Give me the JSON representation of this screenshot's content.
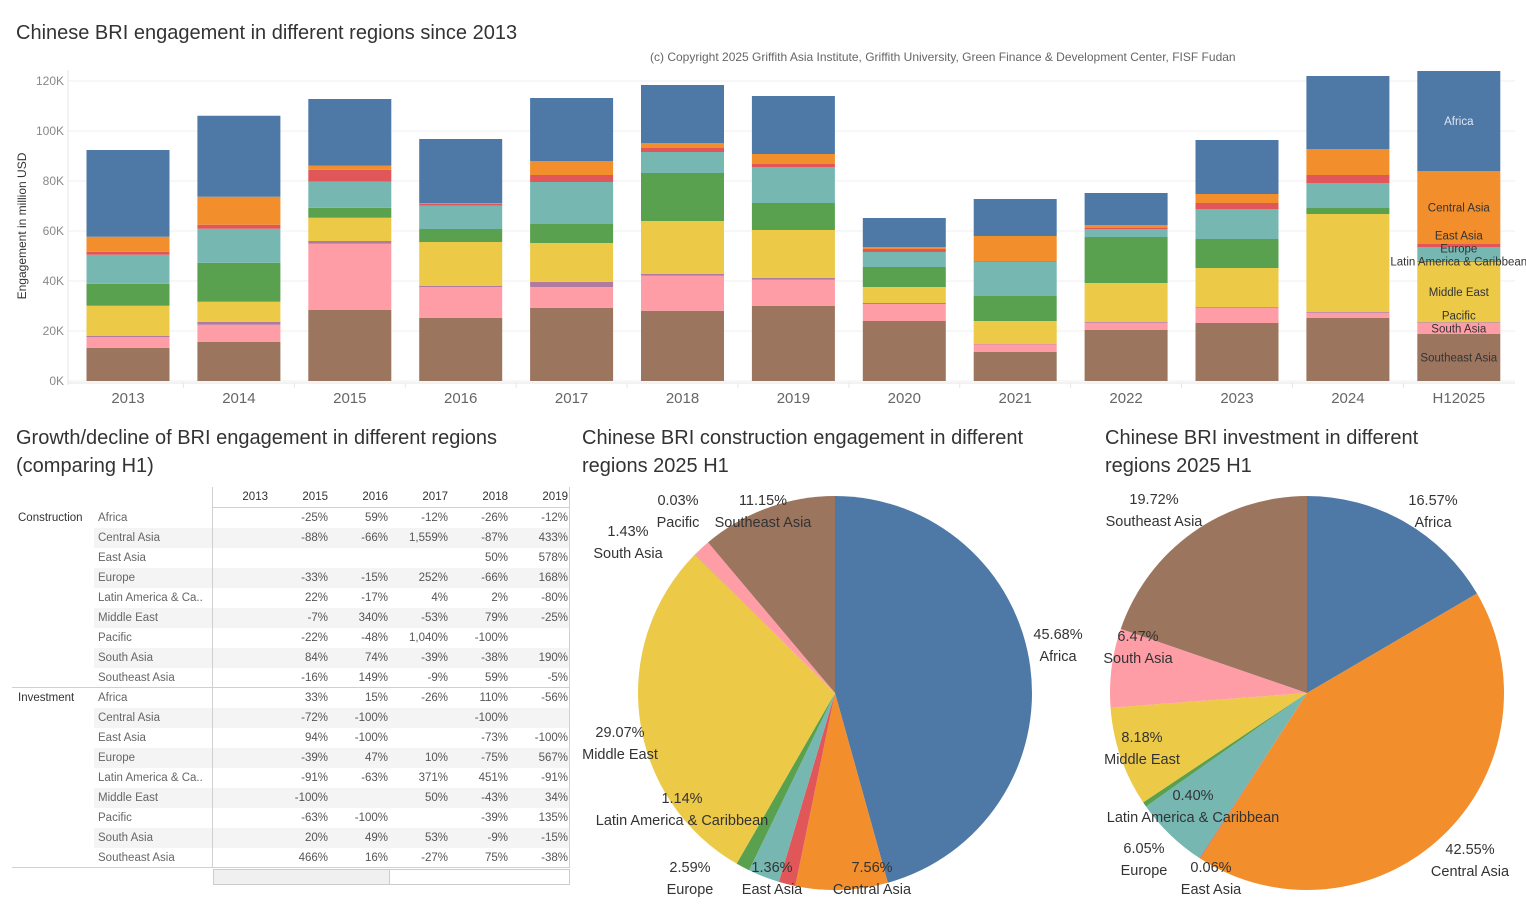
{
  "titles": {
    "bar": "Chinese BRI engagement in different regions since 2013",
    "table": "Growth/decline of BRI engagement in different regions\n(comparing H1)",
    "construction_pie": "Chinese BRI construction engagement in different\nregions 2025 H1",
    "investment_pie": "Chinese BRI investment in different\nregions 2025 H1"
  },
  "copyright": "(c) Copyright 2025 Griffith Asia Institute, Griffith University, Green Finance & Development Center, FISF Fudan",
  "colors": {
    "Africa": "#4e79a7",
    "Central Asia": "#f28e2b",
    "East Asia": "#e15759",
    "Europe": "#76b7b2",
    "Latin America & Caribbean": "#59a14f",
    "Middle East": "#edc948",
    "Pacific": "#b07aa1",
    "South Asia": "#ff9da7",
    "Southeast Asia": "#9c755f"
  },
  "chart_data": [
    {
      "type": "bar",
      "stacked": true,
      "title": "Chinese BRI engagement in different regions since 2013",
      "ylabel": "Engagement in million USD",
      "xlabel": "",
      "ylim": [
        0,
        125000
      ],
      "yticks": [
        "0K",
        "20K",
        "40K",
        "60K",
        "80K",
        "100K",
        "120K"
      ],
      "ytick_values": [
        0,
        20000,
        40000,
        60000,
        80000,
        100000,
        120000
      ],
      "grid": true,
      "categories": [
        "2013",
        "2014",
        "2015",
        "2016",
        "2017",
        "2018",
        "2019",
        "2020",
        "2021",
        "2022",
        "2023",
        "2024",
        "H12025"
      ],
      "series": [
        {
          "name": "Southeast Asia",
          "values": [
            13300,
            15700,
            28500,
            25300,
            29300,
            28100,
            30100,
            24000,
            11600,
            20400,
            23200,
            25300,
            18800
          ]
        },
        {
          "name": "South Asia",
          "values": [
            4300,
            6800,
            26400,
            12300,
            8300,
            14000,
            10400,
            6800,
            3200,
            2900,
            6100,
            2000,
            4400
          ]
        },
        {
          "name": "Pacific",
          "values": [
            500,
            1200,
            1100,
            500,
            2100,
            800,
            800,
            400,
            100,
            300,
            300,
            300,
            300
          ]
        },
        {
          "name": "Middle East",
          "values": [
            12000,
            8000,
            9300,
            17500,
            15500,
            21100,
            19100,
            6400,
            9100,
            15600,
            15600,
            39200,
            24100
          ]
        },
        {
          "name": "Latin America & Caribbean",
          "values": [
            8800,
            15600,
            4000,
            5200,
            7600,
            19200,
            10800,
            8000,
            10000,
            18400,
            11600,
            2400,
            500
          ]
        },
        {
          "name": "Europe",
          "values": [
            11600,
            13600,
            10400,
            9300,
            16800,
            8400,
            14400,
            6000,
            13700,
            3200,
            12000,
            10000,
            5500
          ]
        },
        {
          "name": "East Asia",
          "values": [
            1200,
            1600,
            4800,
            700,
            2800,
            1600,
            1200,
            1200,
            300,
            400,
            2400,
            3200,
            1200
          ]
        },
        {
          "name": "Central Asia",
          "values": [
            6000,
            11200,
            1600,
            400,
            5600,
            2000,
            4000,
            800,
            10000,
            1200,
            3600,
            10400,
            29200
          ]
        },
        {
          "name": "Africa",
          "values": [
            34700,
            32400,
            26700,
            25600,
            25200,
            23200,
            23200,
            11600,
            14800,
            12800,
            21600,
            29200,
            40000
          ]
        }
      ],
      "segment_labels_on": "H12025"
    },
    {
      "type": "table",
      "title": "Growth/decline of BRI engagement in different regions (comparing H1)",
      "columns": [
        "2013",
        "2015",
        "2016",
        "2017",
        "2018",
        "2019"
      ],
      "groups": [
        {
          "name": "Construction",
          "rows": [
            {
              "region": "Africa",
              "values": [
                "",
                "-25%",
                "59%",
                "-12%",
                "-26%",
                "-12%"
              ]
            },
            {
              "region": "Central Asia",
              "values": [
                "",
                "-88%",
                "-66%",
                "1,559%",
                "-87%",
                "433%"
              ]
            },
            {
              "region": "East Asia",
              "values": [
                "",
                "",
                "",
                "",
                "50%",
                "578%"
              ]
            },
            {
              "region": "Europe",
              "values": [
                "",
                "-33%",
                "-15%",
                "252%",
                "-66%",
                "168%"
              ]
            },
            {
              "region": "Latin America & Ca..",
              "values": [
                "",
                "22%",
                "-17%",
                "4%",
                "2%",
                "-80%"
              ]
            },
            {
              "region": "Middle East",
              "values": [
                "",
                "-7%",
                "340%",
                "-53%",
                "79%",
                "-25%"
              ]
            },
            {
              "region": "Pacific",
              "values": [
                "",
                "-22%",
                "-48%",
                "1,040%",
                "-100%",
                ""
              ]
            },
            {
              "region": "South Asia",
              "values": [
                "",
                "84%",
                "74%",
                "-39%",
                "-38%",
                "190%"
              ]
            },
            {
              "region": "Southeast Asia",
              "values": [
                "",
                "-16%",
                "149%",
                "-9%",
                "59%",
                "-5%"
              ]
            }
          ]
        },
        {
          "name": "Investment",
          "rows": [
            {
              "region": "Africa",
              "values": [
                "",
                "33%",
                "15%",
                "-26%",
                "110%",
                "-56%"
              ]
            },
            {
              "region": "Central Asia",
              "values": [
                "",
                "-72%",
                "-100%",
                "",
                "-100%",
                ""
              ]
            },
            {
              "region": "East Asia",
              "values": [
                "",
                "94%",
                "-100%",
                "",
                "-73%",
                "-100%"
              ]
            },
            {
              "region": "Europe",
              "values": [
                "",
                "-39%",
                "47%",
                "10%",
                "-75%",
                "567%"
              ]
            },
            {
              "region": "Latin America & Ca..",
              "values": [
                "",
                "-91%",
                "-63%",
                "371%",
                "451%",
                "-91%"
              ]
            },
            {
              "region": "Middle East",
              "values": [
                "",
                "-100%",
                "",
                "50%",
                "-43%",
                "34%"
              ]
            },
            {
              "region": "Pacific",
              "values": [
                "",
                "-63%",
                "-100%",
                "",
                "-39%",
                "135%"
              ]
            },
            {
              "region": "South Asia",
              "values": [
                "",
                "20%",
                "49%",
                "53%",
                "-9%",
                "-15%"
              ]
            },
            {
              "region": "Southeast Asia",
              "values": [
                "",
                "466%",
                "16%",
                "-27%",
                "75%",
                "-38%"
              ]
            }
          ]
        }
      ]
    },
    {
      "type": "pie",
      "title": "Chinese BRI construction engagement in different regions 2025 H1",
      "slices": [
        {
          "name": "Africa",
          "value": 45.68,
          "label": "45.68%"
        },
        {
          "name": "Central Asia",
          "value": 7.56,
          "label": "7.56%"
        },
        {
          "name": "East Asia",
          "value": 1.36,
          "label": "1.36%"
        },
        {
          "name": "Europe",
          "value": 2.59,
          "label": "2.59%"
        },
        {
          "name": "Latin America & Caribbean",
          "value": 1.14,
          "label": "1.14%"
        },
        {
          "name": "Middle East",
          "value": 29.07,
          "label": "29.07%"
        },
        {
          "name": "Pacific",
          "value": 0.03,
          "label": "0.03%"
        },
        {
          "name": "South Asia",
          "value": 1.43,
          "label": "1.43%"
        },
        {
          "name": "Southeast Asia",
          "value": 11.15,
          "label": "11.15%"
        }
      ]
    },
    {
      "type": "pie",
      "title": "Chinese BRI investment in different regions 2025 H1",
      "slices": [
        {
          "name": "Africa",
          "value": 16.57,
          "label": "16.57%"
        },
        {
          "name": "Central Asia",
          "value": 42.55,
          "label": "42.55%"
        },
        {
          "name": "East Asia",
          "value": 0.06,
          "label": "0.06%"
        },
        {
          "name": "Europe",
          "value": 6.05,
          "label": "6.05%"
        },
        {
          "name": "Latin America & Caribbean",
          "value": 0.4,
          "label": "0.40%"
        },
        {
          "name": "Middle East",
          "value": 8.18,
          "label": "8.18%"
        },
        {
          "name": "South Asia",
          "value": 6.47,
          "label": "6.47%"
        },
        {
          "name": "Southeast Asia",
          "value": 19.72,
          "label": "19.72%"
        }
      ]
    }
  ]
}
